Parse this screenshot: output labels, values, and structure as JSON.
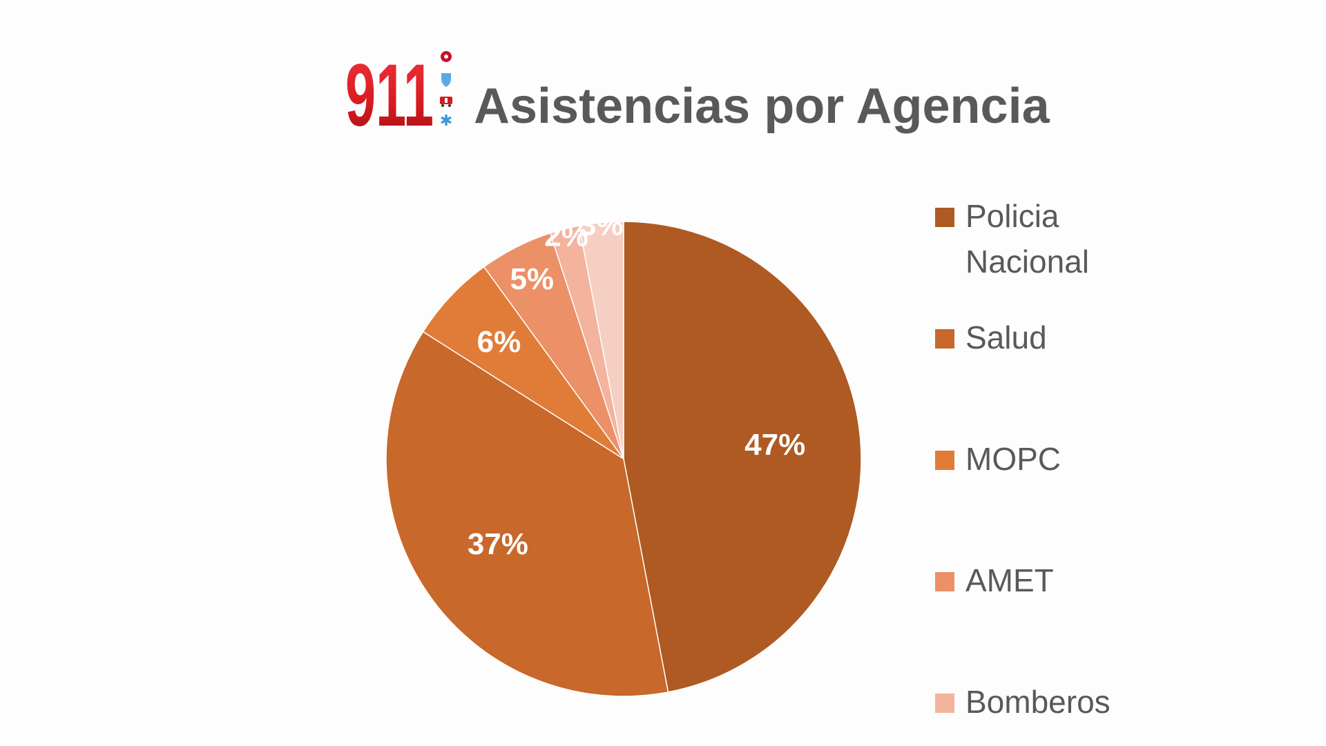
{
  "logo": {
    "text": "911",
    "icons": [
      "fire-icon",
      "shield-icon",
      "ambulance-icon",
      "medical-star-icon"
    ],
    "colors": {
      "red": "#d71920",
      "fire": "#c8102e",
      "shield": "#5aa9e6",
      "ambulance": "#d71920",
      "star": "#3a9ad9"
    }
  },
  "title": "Asistencias por Agencia",
  "colors": {
    "Policia Nacional": "#ae5a22",
    "Salud": "#c8682a",
    "MOPC": "#e07c38",
    "AMET": "#ec9068",
    "Bomberos": "#f3b39c",
    "Otros": "#f6cfc3"
  },
  "chart_data": {
    "type": "pie",
    "title": "Asistencias por Agencia",
    "categories": [
      "Policia Nacional",
      "Salud",
      "MOPC",
      "AMET",
      "Bomberos",
      ""
    ],
    "values": [
      47,
      37,
      6,
      5,
      2,
      3
    ],
    "data_labels": [
      "47%",
      "37%",
      "6%",
      "5%",
      "2%",
      "3%"
    ],
    "legend_entries": [
      "Policia Nacional",
      "Salud",
      "MOPC",
      "AMET",
      "Bomberos"
    ],
    "legend_placement": "right",
    "start_angle": "12 o'clock",
    "direction": "clockwise"
  }
}
